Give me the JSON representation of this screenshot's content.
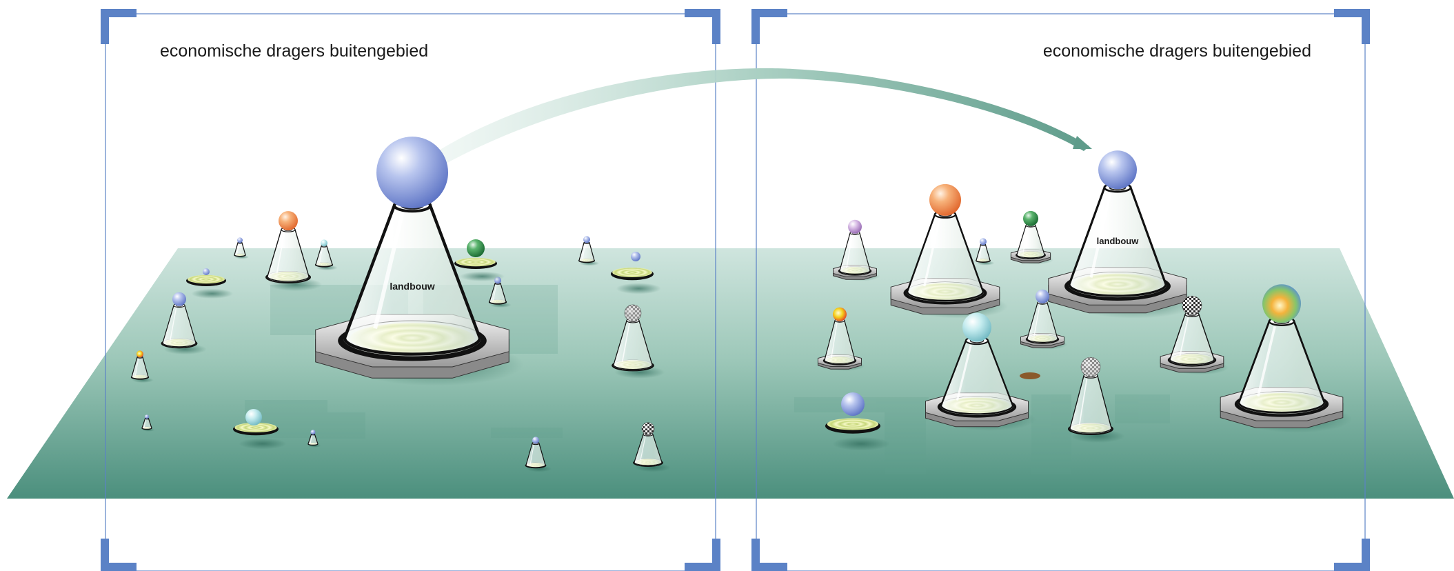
{
  "panels": {
    "left": {
      "title": "economische dragers buitengebied"
    },
    "right": {
      "title": "economische dragers buitengebied"
    }
  },
  "labels": {
    "main_left": "landbouw",
    "main_right": "landbouw"
  },
  "colors": {
    "frame": "#5b82c6",
    "ground_top": "#c9e2da",
    "ground_bottom": "#4f9280",
    "arrow": "#6aa493",
    "sphere_blue": "#8ea3de",
    "sphere_orange": "#f39a52",
    "sphere_green": "#2e8d48",
    "sphere_cyan": "#9fd8de",
    "sphere_purple": "#c49cd8",
    "sphere_yellow": "#f0c21b",
    "ring_yellow": "#e6ee8c"
  },
  "icons": {
    "transfer": "curved-arrow-icon",
    "cone": "cone-pedestal-icon",
    "sphere": "sphere-icon",
    "disc": "target-disc-icon"
  }
}
